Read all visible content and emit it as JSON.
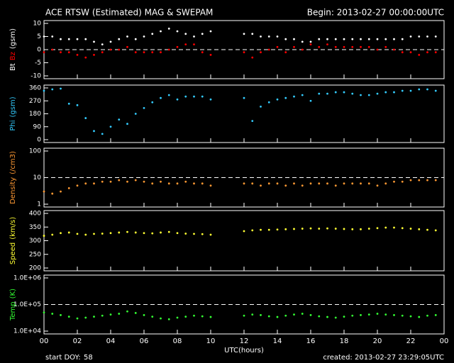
{
  "header": {
    "title": "ACE RTSW (Estimated) MAG & SWEPAM",
    "begin": "Begin: 2013-02-27 00:00:00UTC"
  },
  "footer": {
    "start_doy_label": "start DOY:",
    "start_doy": 58,
    "created": "created: 2013-02-27 23:29:05UTC"
  },
  "chart_data": [
    {
      "type": "scatter",
      "ylabel": "(gsm)",
      "xlim": [
        0,
        24
      ],
      "ylim": [
        -10,
        10
      ],
      "yticks": [
        10,
        5,
        0,
        -5,
        -10
      ],
      "refline": 0,
      "x": [
        0,
        0.5,
        1,
        1.5,
        2,
        2.5,
        3,
        3.5,
        4,
        4.5,
        5,
        5.5,
        6,
        6.5,
        7,
        7.5,
        8,
        8.5,
        9,
        9.5,
        10,
        10.5,
        11,
        11.5,
        12,
        12.5,
        13,
        13.5,
        14,
        14.5,
        15,
        15.5,
        16,
        16.5,
        17,
        17.5,
        18,
        18.5,
        19,
        19.5,
        20,
        20.5,
        21,
        21.5,
        22,
        22.5,
        23,
        23.5
      ],
      "series": [
        {
          "name": "Bt",
          "color": "#ffffff",
          "values": [
            5,
            5,
            4,
            4,
            4,
            4,
            3,
            2,
            3,
            4,
            5,
            4,
            5,
            6,
            7,
            8,
            7,
            6,
            5,
            6,
            7,
            null,
            null,
            null,
            6,
            6,
            5,
            5,
            5,
            4,
            4,
            3,
            3,
            4,
            4,
            4,
            4,
            4,
            4,
            4,
            4,
            4,
            4,
            4,
            5,
            5,
            5,
            5
          ]
        },
        {
          "name": "Bz",
          "color": "#ff0000",
          "values": [
            -1,
            0,
            -1,
            -1,
            -2,
            -3,
            -2,
            -1,
            0,
            0,
            1,
            -1,
            -1,
            -1,
            -1,
            0,
            1,
            2,
            2,
            -1,
            -2,
            null,
            null,
            null,
            -1,
            -3,
            -1,
            0,
            1,
            -1,
            1,
            0,
            2,
            1,
            2,
            1,
            1,
            1,
            1,
            1,
            0,
            1,
            0,
            -1,
            -1,
            -2,
            -1,
            -1
          ]
        }
      ]
    },
    {
      "type": "scatter",
      "ylabel": "(gsm)",
      "xlim": [
        0,
        24
      ],
      "ylim": [
        0,
        360
      ],
      "yticks": [
        360,
        270,
        180,
        90,
        0
      ],
      "x": [
        0,
        0.5,
        1,
        1.5,
        2,
        2.5,
        3,
        3.5,
        4,
        4.5,
        5,
        5.5,
        6,
        6.5,
        7,
        7.5,
        8,
        8.5,
        9,
        9.5,
        10,
        10.5,
        11,
        11.5,
        12,
        12.5,
        13,
        13.5,
        14,
        14.5,
        15,
        15.5,
        16,
        16.5,
        17,
        17.5,
        18,
        18.5,
        19,
        19.5,
        20,
        20.5,
        21,
        21.5,
        22,
        22.5,
        23,
        23.5
      ],
      "series": [
        {
          "name": "Phi",
          "color": "#33ccff",
          "values": [
            340,
            350,
            355,
            250,
            240,
            150,
            60,
            40,
            90,
            140,
            110,
            180,
            220,
            260,
            290,
            310,
            280,
            300,
            300,
            300,
            280,
            null,
            null,
            null,
            290,
            130,
            230,
            260,
            280,
            290,
            300,
            310,
            270,
            320,
            320,
            330,
            330,
            320,
            310,
            310,
            320,
            330,
            330,
            340,
            340,
            350,
            350,
            340
          ]
        }
      ]
    },
    {
      "type": "scatter",
      "ylabel": "(/cm3)",
      "log": true,
      "xlim": [
        0,
        24
      ],
      "ylim": [
        1,
        100
      ],
      "yticks": [
        100,
        10,
        1
      ],
      "refline": 10,
      "x": [
        0,
        0.5,
        1,
        1.5,
        2,
        2.5,
        3,
        3.5,
        4,
        4.5,
        5,
        5.5,
        6,
        6.5,
        7,
        7.5,
        8,
        8.5,
        9,
        9.5,
        10,
        10.5,
        11,
        11.5,
        12,
        12.5,
        13,
        13.5,
        14,
        14.5,
        15,
        15.5,
        16,
        16.5,
        17,
        17.5,
        18,
        18.5,
        19,
        19.5,
        20,
        20.5,
        21,
        21.5,
        22,
        22.5,
        23,
        23.5
      ],
      "series": [
        {
          "name": "Density",
          "color": "#ff9933",
          "values": [
            3,
            2.5,
            3,
            4,
            5,
            6,
            6,
            7,
            7,
            8,
            7,
            8,
            7,
            6,
            7,
            6,
            6,
            7,
            6,
            6,
            5,
            null,
            null,
            null,
            6,
            6,
            5,
            6,
            6,
            5,
            6,
            5,
            6,
            6,
            6,
            5,
            6,
            6,
            6,
            6,
            5,
            6,
            7,
            7,
            8,
            8,
            8,
            8
          ]
        }
      ]
    },
    {
      "type": "scatter",
      "ylabel": "(km/s)",
      "xlim": [
        0,
        24
      ],
      "ylim": [
        200,
        400
      ],
      "yticks": [
        400,
        350,
        300,
        250,
        200
      ],
      "x": [
        0,
        0.5,
        1,
        1.5,
        2,
        2.5,
        3,
        3.5,
        4,
        4.5,
        5,
        5.5,
        6,
        6.5,
        7,
        7.5,
        8,
        8.5,
        9,
        9.5,
        10,
        10.5,
        11,
        11.5,
        12,
        12.5,
        13,
        13.5,
        14,
        14.5,
        15,
        15.5,
        16,
        16.5,
        17,
        17.5,
        18,
        18.5,
        19,
        19.5,
        20,
        20.5,
        21,
        21.5,
        22,
        22.5,
        23,
        23.5
      ],
      "series": [
        {
          "name": "Speed",
          "color": "#ffff33",
          "values": [
            318,
            322,
            328,
            330,
            325,
            322,
            325,
            326,
            328,
            330,
            332,
            330,
            328,
            327,
            330,
            332,
            328,
            326,
            325,
            324,
            322,
            null,
            null,
            null,
            335,
            338,
            340,
            340,
            341,
            342,
            343,
            344,
            345,
            344,
            345,
            344,
            343,
            342,
            342,
            344,
            346,
            348,
            348,
            346,
            344,
            342,
            340,
            338
          ]
        }
      ]
    },
    {
      "type": "scatter",
      "ylabel": "(K)",
      "log": true,
      "xlim": [
        0,
        24
      ],
      "ylim": [
        10000,
        1000000
      ],
      "yticks": [
        {
          "value": 1000000,
          "label": "1.0E+06"
        },
        {
          "value": 100000,
          "label": "1.0E+05"
        },
        {
          "value": 10000,
          "label": "1.0E+04"
        }
      ],
      "refline": 100000,
      "xlabel": "UTC(hours)",
      "xticks": [
        {
          "value": 0,
          "label": "00"
        },
        {
          "value": 2,
          "label": "02"
        },
        {
          "value": 4,
          "label": "04"
        },
        {
          "value": 6,
          "label": "06"
        },
        {
          "value": 8,
          "label": "08"
        },
        10,
        12,
        14,
        16,
        18,
        20,
        22,
        {
          "value": 24,
          "label": "00"
        }
      ],
      "x": [
        0,
        0.5,
        1,
        1.5,
        2,
        2.5,
        3,
        3.5,
        4,
        4.5,
        5,
        5.5,
        6,
        6.5,
        7,
        7.5,
        8,
        8.5,
        9,
        9.5,
        10,
        10.5,
        11,
        11.5,
        12,
        12.5,
        13,
        13.5,
        14,
        14.5,
        15,
        15.5,
        16,
        16.5,
        17,
        17.5,
        18,
        18.5,
        19,
        19.5,
        20,
        20.5,
        21,
        21.5,
        22,
        22.5,
        23,
        23.5
      ],
      "series": [
        {
          "name": "Temp",
          "color": "#33ff33",
          "values": [
            50000,
            45000,
            40000,
            35000,
            30000,
            32000,
            35000,
            38000,
            42000,
            45000,
            55000,
            48000,
            40000,
            35000,
            30000,
            28000,
            32000,
            35000,
            38000,
            36000,
            34000,
            null,
            null,
            null,
            38000,
            42000,
            40000,
            36000,
            34000,
            38000,
            42000,
            45000,
            40000,
            36000,
            34000,
            32000,
            35000,
            38000,
            40000,
            42000,
            45000,
            42000,
            40000,
            38000,
            36000,
            34000,
            38000,
            40000
          ]
        }
      ]
    }
  ]
}
